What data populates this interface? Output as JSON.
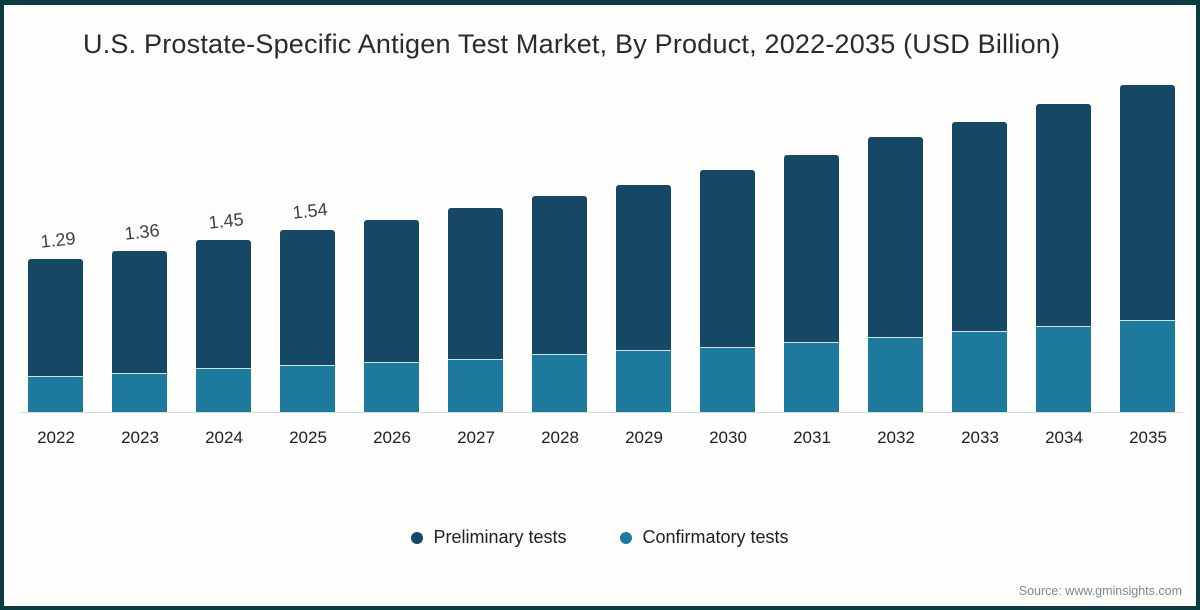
{
  "title": "U.S. Prostate-Specific Antigen Test Market, By Product, 2022-2035 (USD Billion)",
  "source": "Source: www.gminsights.com",
  "colors": {
    "preliminary": "#164866",
    "confirmatory": "#1d7a9c",
    "frame_border": "#0d3b42",
    "background": "#fdfdfb",
    "axis_line": "#d9d9d9",
    "bar_label_text": "#404040",
    "tick_text": "#222222",
    "source_text": "#7e8b8c"
  },
  "legend": {
    "items": [
      {
        "label": "Preliminary tests",
        "color": "#164866"
      },
      {
        "label": "Confirmatory tests",
        "color": "#1d7a9c"
      }
    ]
  },
  "chart_data": {
    "type": "bar",
    "stacked": true,
    "title": "U.S. Prostate-Specific Antigen Test Market, By Product, 2022-2035 (USD Billion)",
    "xlabel": "",
    "ylabel": "USD Billion",
    "ylim": [
      0,
      2.76
    ],
    "grid": false,
    "legend_position": "bottom",
    "categories": [
      "2022",
      "2023",
      "2024",
      "2025",
      "2026",
      "2027",
      "2028",
      "2029",
      "2030",
      "2031",
      "2032",
      "2033",
      "2034",
      "2035"
    ],
    "series": [
      {
        "name": "Preliminary tests",
        "color": "#164866",
        "values": [
          0.99,
          1.03,
          1.08,
          1.14,
          1.2,
          1.27,
          1.33,
          1.4,
          1.49,
          1.58,
          1.69,
          1.77,
          1.87,
          1.98
        ]
      },
      {
        "name": "Confirmatory tests",
        "color": "#1d7a9c",
        "values": [
          0.3,
          0.33,
          0.37,
          0.4,
          0.42,
          0.45,
          0.49,
          0.52,
          0.55,
          0.59,
          0.63,
          0.68,
          0.73,
          0.78
        ]
      }
    ],
    "totals": [
      1.29,
      1.36,
      1.45,
      1.54,
      1.62,
      1.72,
      1.82,
      1.92,
      2.04,
      2.17,
      2.32,
      2.45,
      2.6,
      2.76
    ],
    "bar_labels": [
      "1.29",
      "1.36",
      "1.45",
      "1.54",
      "",
      "",
      "",
      "",
      "",
      "",
      "",
      "",
      "",
      ""
    ]
  }
}
